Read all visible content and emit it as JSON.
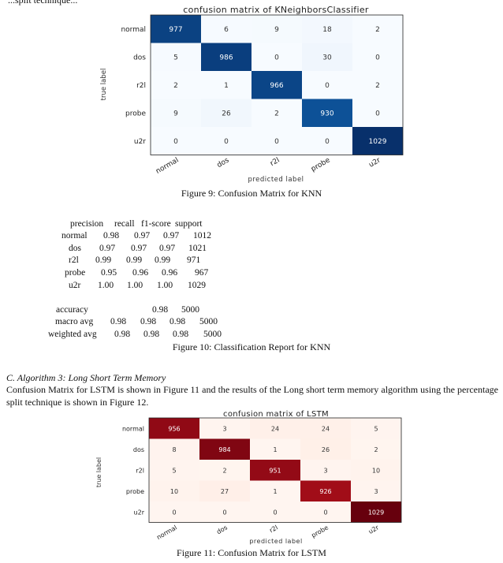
{
  "page_fragment": "...split technique...",
  "knn_matrix": {
    "title": "confusion matrix of KNeighborsClassifier",
    "xlabel": "predicted label",
    "ylabel": "true label",
    "labels": [
      "normal",
      "dos",
      "r2l",
      "probe",
      "u2r"
    ],
    "tick_labels_y": [
      "normal",
      "dos",
      "r2l",
      "probe",
      "u2r"
    ],
    "tick_labels_x": [
      "normal",
      "dos",
      "r2l",
      "probe",
      "u2r"
    ],
    "colormap": "Blues",
    "values": [
      [
        977,
        6,
        9,
        18,
        2
      ],
      [
        5,
        986,
        0,
        30,
        0
      ],
      [
        2,
        1,
        966,
        0,
        2
      ],
      [
        9,
        26,
        2,
        930,
        0
      ],
      [
        0,
        0,
        0,
        0,
        1029
      ]
    ]
  },
  "figure9_caption": "Figure 9: Confusion Matrix for KNN",
  "report": {
    "header": [
      "precision",
      "recall",
      "f1-score",
      "support"
    ],
    "rows": [
      {
        "name": "normal",
        "precision": "0.98",
        "recall": "0.97",
        "f1": "0.97",
        "support": "1012"
      },
      {
        "name": "dos",
        "precision": "0.97",
        "recall": "0.97",
        "f1": "0.97",
        "support": "1021"
      },
      {
        "name": "r2l",
        "precision": "0.99",
        "recall": "0.99",
        "f1": "0.99",
        "support": "971"
      },
      {
        "name": "probe",
        "precision": "0.95",
        "recall": "0.96",
        "f1": "0.96",
        "support": "967"
      },
      {
        "name": "u2r",
        "precision": "1.00",
        "recall": "1.00",
        "f1": "1.00",
        "support": "1029"
      }
    ],
    "accuracy_label": "accuracy",
    "accuracy_value": "0.98",
    "accuracy_support": "5000",
    "macro_label": "macro avg",
    "macro_values": [
      "0.98",
      "0.98",
      "0.98",
      "5000"
    ],
    "weighted_label": "weighted avg",
    "weighted_values": [
      "0.98",
      "0.98",
      "0.98",
      "5000"
    ]
  },
  "figure10_caption": "Figure 10: Classification Report for KNN",
  "section_heading": "C.   Algorithm 3: Long Short Term Memory",
  "paragraph": "Confusion Matrix for LSTM is shown in Figure 11 and the results of the Long short term memory algorithm using the percentage split technique is shown in Figure 12.",
  "lstm_matrix": {
    "title": "confusion matrix of LSTM",
    "xlabel": "predicted label",
    "ylabel": "true label",
    "labels": [
      "normal",
      "dos",
      "r2l",
      "probe",
      "u2r"
    ],
    "tick_labels_y": [
      "normal",
      "dos",
      "r2l",
      "probe",
      "u2r"
    ],
    "tick_labels_x": [
      "normal",
      "dos",
      "r2l",
      "probe",
      "u2r"
    ],
    "colormap": "Reds",
    "values": [
      [
        956,
        3,
        24,
        24,
        5
      ],
      [
        8,
        984,
        1,
        26,
        2
      ],
      [
        5,
        2,
        951,
        3,
        10
      ],
      [
        10,
        27,
        1,
        926,
        3
      ],
      [
        0,
        0,
        0,
        0,
        1029
      ]
    ]
  },
  "figure11_caption": "Figure 11: Confusion Matrix for LSTM",
  "chart_data": [
    {
      "type": "heatmap",
      "title": "confusion matrix of KNeighborsClassifier",
      "xlabel": "predicted label",
      "ylabel": "true label",
      "categories": [
        "normal",
        "dos",
        "r2l",
        "probe",
        "u2r"
      ],
      "values": [
        [
          977,
          6,
          9,
          18,
          2
        ],
        [
          5,
          986,
          0,
          30,
          0
        ],
        [
          2,
          1,
          966,
          0,
          2
        ],
        [
          9,
          26,
          2,
          930,
          0
        ],
        [
          0,
          0,
          0,
          0,
          1029
        ]
      ],
      "colormap": "Blues"
    },
    {
      "type": "heatmap",
      "title": "confusion matrix of LSTM",
      "xlabel": "predicted label",
      "ylabel": "true label",
      "categories": [
        "normal",
        "dos",
        "r2l",
        "probe",
        "u2r"
      ],
      "values": [
        [
          956,
          3,
          24,
          24,
          5
        ],
        [
          8,
          984,
          1,
          26,
          2
        ],
        [
          5,
          2,
          951,
          3,
          10
        ],
        [
          10,
          27,
          1,
          926,
          3
        ],
        [
          0,
          0,
          0,
          0,
          1029
        ]
      ],
      "colormap": "Reds"
    }
  ]
}
